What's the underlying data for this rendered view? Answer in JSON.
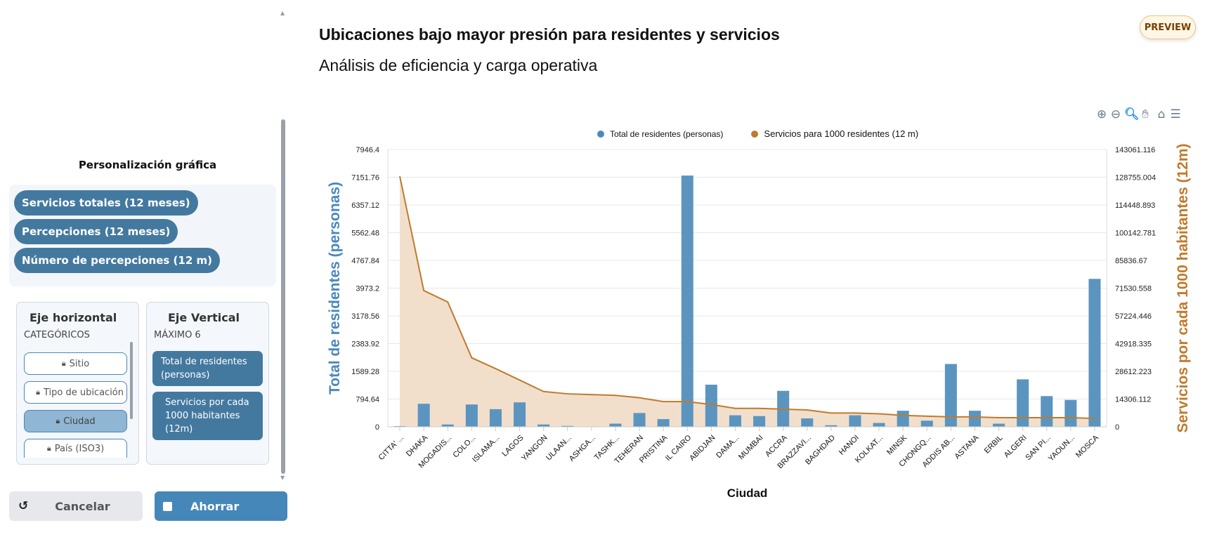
{
  "header": {
    "title": "Ubicaciones bajo mayor presión para residentes y servicios",
    "subtitle": "Análisis de eficiencia y carga operativa",
    "badge": "PREVIEW"
  },
  "toolbar": {
    "icons": [
      "zoom-in-icon",
      "zoom-out-icon",
      "zoom-select-icon",
      "pan-icon",
      "home-icon",
      "menu-icon"
    ]
  },
  "sidebar": {
    "title": "Personalización gráfica",
    "chips": [
      "Servicios totales (12 meses)",
      "Percepciones (12 meses)",
      "Número de percepciones (12 m)"
    ],
    "horizontal": {
      "title": "Eje horizontal",
      "subtitle": "CATEGÓRICOS",
      "items": [
        "Sitio",
        "Tipo de ubicación",
        "Ciudad",
        "País (ISO3)"
      ],
      "selected": "Ciudad"
    },
    "vertical": {
      "title": "Eje Vertical",
      "subtitle": "MÁXIMO 6",
      "items": [
        "Total de residentes (personas)",
        "Servicios por cada 1000 habitantes (12m)"
      ]
    },
    "cancel_label": "Cancelar",
    "save_label": "Ahorrar"
  },
  "colors": {
    "bar": "#5b95bf",
    "line": "#c07a2c",
    "area": "#efdcc6",
    "accent": "#44799f"
  },
  "chart_data": {
    "type": "bar+area",
    "xlabel": "Ciudad",
    "ylabel": "Total de residentes (personas)",
    "y2label": "Servicios por cada 1000 habitantes (12m)",
    "legend": [
      "Total de residentes (personas)",
      "Servicios para 1000 residentes (12 m)"
    ],
    "legend_position": "top",
    "categories": [
      "CITTA' ...",
      "DHAKA",
      "MOGADIS...",
      "COLO...",
      "ISLAMA...",
      "LAGOS",
      "YANGON",
      "ULAAN...",
      "ASHGA...",
      "TASHK...",
      "TEHERAN",
      "PRISTINA",
      "IL CAIRO",
      "ABIDJAN",
      "DAMA...",
      "MUMBAI",
      "ACCRA",
      "BRAZZAVI...",
      "BAGHDAD",
      "HANOI",
      "KOLKAT...",
      "MINSK",
      "CHONGQ...",
      "ADDIS AB...",
      "ASTANA",
      "ERBIL",
      "ALGERI",
      "SAN PI...",
      "YAOUN...",
      "MOSCA"
    ],
    "ylim": [
      0,
      7946.4
    ],
    "y2lim": [
      0,
      143061.116
    ],
    "yticks": [
      "0",
      "794.64",
      "1589.28",
      "2383.92",
      "3178.56",
      "3973.2",
      "4767.84",
      "5562.48",
      "6357.12",
      "7151.76",
      "7946.4"
    ],
    "y2ticks": [
      "0",
      "14306.112",
      "28612.223",
      "42918.335",
      "57224.446",
      "71530.558",
      "85836.67",
      "100142.781",
      "114448.893",
      "128755.004",
      "143061.116"
    ],
    "series": [
      {
        "name": "Total de residentes (personas)",
        "type": "bar",
        "axis": "left",
        "values": [
          20,
          660,
          66,
          640,
          505,
          700,
          66,
          25,
          10,
          90,
          395,
          220,
          7200,
          1207,
          330,
          307,
          1030,
          240,
          45,
          330,
          110,
          460,
          175,
          1800,
          460,
          90,
          1360,
          880,
          770,
          4240
        ]
      },
      {
        "name": "Servicios para 1000 residentes (12 m)",
        "type": "area",
        "axis": "right",
        "values": [
          129200,
          70300,
          64400,
          35600,
          30000,
          24100,
          18200,
          17000,
          16600,
          16200,
          15000,
          13000,
          13000,
          11500,
          9500,
          9500,
          9100,
          8700,
          7100,
          7100,
          6700,
          5900,
          5500,
          5100,
          5100,
          4700,
          4700,
          4700,
          4700,
          4300
        ]
      }
    ],
    "grid": true
  }
}
